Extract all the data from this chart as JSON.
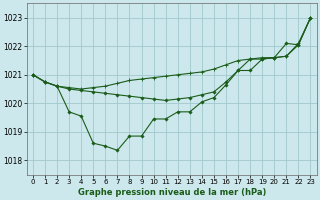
{
  "title": "Graphe pression niveau de la mer (hPa)",
  "bg_color": "#cde8ec",
  "grid_color": "#a0c8cc",
  "line_color": "#1a5c1a",
  "xlim": [
    -0.5,
    23.5
  ],
  "ylim": [
    1017.5,
    1023.5
  ],
  "yticks": [
    1018,
    1019,
    1020,
    1021,
    1022,
    1023
  ],
  "xticks": [
    0,
    1,
    2,
    3,
    4,
    5,
    6,
    7,
    8,
    9,
    10,
    11,
    12,
    13,
    14,
    15,
    16,
    17,
    18,
    19,
    20,
    21,
    22,
    23
  ],
  "series1_x": [
    0,
    1,
    2,
    3,
    4,
    5,
    6,
    7,
    8,
    9,
    10,
    11,
    12,
    13,
    14,
    15,
    16,
    17,
    18,
    19,
    20,
    21,
    22,
    23
  ],
  "series1_y": [
    1021.0,
    1020.75,
    1020.6,
    1019.7,
    1019.55,
    1018.6,
    1018.5,
    1018.35,
    1018.85,
    1018.85,
    1019.45,
    1019.45,
    1019.7,
    1019.7,
    1020.05,
    1020.2,
    1020.65,
    1021.15,
    1021.15,
    1021.55,
    1021.6,
    1022.1,
    1022.05,
    1023.0
  ],
  "series2_x": [
    0,
    1,
    2,
    3,
    4,
    5,
    6,
    7,
    8,
    9,
    10,
    11,
    12,
    13,
    14,
    15,
    16,
    17,
    18,
    19,
    20,
    21,
    22,
    23
  ],
  "series2_y": [
    1021.0,
    1020.75,
    1020.6,
    1020.55,
    1020.5,
    1020.55,
    1020.6,
    1020.7,
    1020.8,
    1020.85,
    1020.9,
    1020.95,
    1021.0,
    1021.05,
    1021.1,
    1021.2,
    1021.35,
    1021.5,
    1021.55,
    1021.6,
    1021.6,
    1021.65,
    1022.1,
    1023.0
  ],
  "series3_x": [
    0,
    1,
    2,
    3,
    4,
    5,
    6,
    7,
    8,
    9,
    10,
    11,
    12,
    13,
    14,
    15,
    16,
    17,
    18,
    19,
    20,
    21,
    22,
    23
  ],
  "series3_y": [
    1021.0,
    1020.75,
    1020.6,
    1020.5,
    1020.45,
    1020.4,
    1020.35,
    1020.3,
    1020.25,
    1020.2,
    1020.15,
    1020.1,
    1020.15,
    1020.2,
    1020.3,
    1020.4,
    1020.75,
    1021.15,
    1021.55,
    1021.55,
    1021.6,
    1021.65,
    1022.05,
    1023.0
  ],
  "xlabel_color": "#1a5c1a",
  "xlabel_fontsize": 6.0,
  "tick_fontsize": 5.0,
  "lw": 0.8,
  "ms": 1.8
}
